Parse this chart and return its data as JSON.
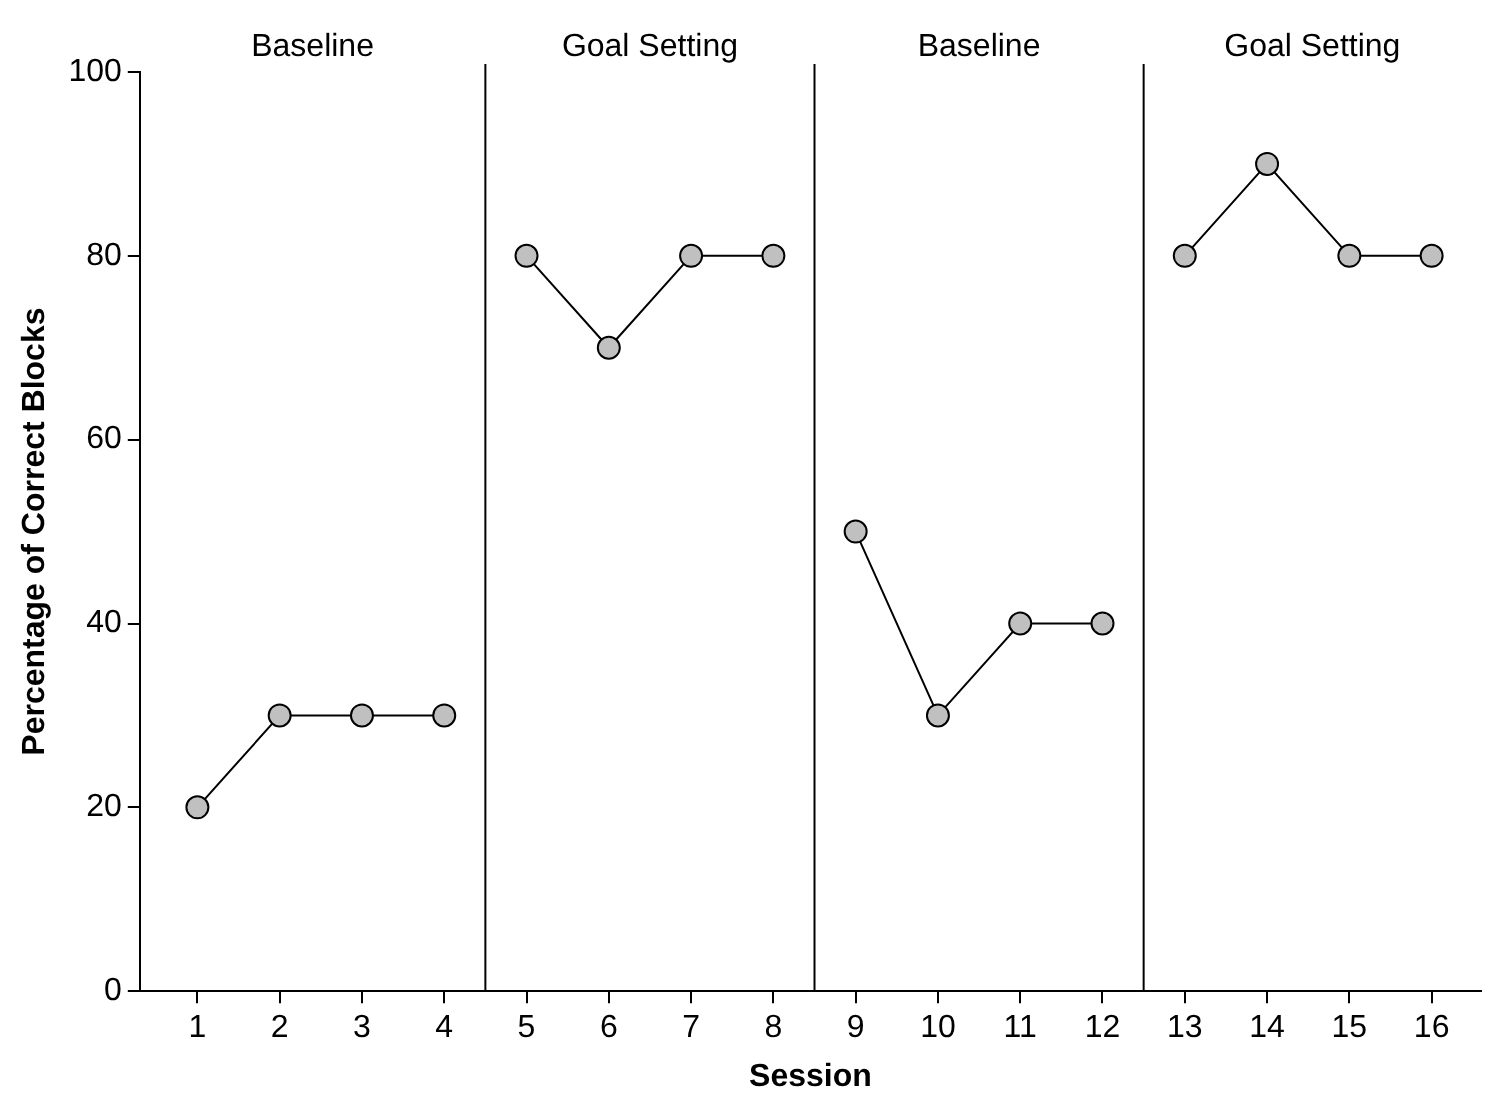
{
  "chart_data": {
    "type": "line",
    "xlabel": "Session",
    "ylabel": "Percentage of Correct Blocks",
    "xlim": [
      0.3,
      16.6
    ],
    "xticks": [
      1,
      2,
      3,
      4,
      5,
      6,
      7,
      8,
      9,
      10,
      11,
      12,
      13,
      14,
      15,
      16
    ],
    "ylim": [
      0,
      100
    ],
    "yticks": [
      0,
      20,
      40,
      60,
      80,
      100
    ],
    "grid": false,
    "legend": false,
    "marker": "circle",
    "line_style": "solid",
    "series": [
      {
        "color": "#c0c0c0",
        "x": [
          1,
          2,
          3,
          4
        ],
        "values": [
          20,
          30,
          30,
          30
        ]
      },
      {
        "color": "#c0c0c0",
        "x": [
          5,
          6,
          7,
          8
        ],
        "values": [
          80,
          70,
          80,
          80
        ]
      },
      {
        "color": "#c0c0c0",
        "x": [
          9,
          10,
          11,
          12
        ],
        "values": [
          50,
          30,
          40,
          40
        ]
      },
      {
        "color": "#c0c0c0",
        "x": [
          13,
          14,
          15,
          16
        ],
        "values": [
          80,
          90,
          80,
          80
        ]
      }
    ],
    "ref_lines": [
      {
        "axis": "x",
        "value": 4.5,
        "color": "#000000"
      },
      {
        "axis": "x",
        "value": 8.5,
        "color": "#000000"
      },
      {
        "axis": "x",
        "value": 12.5,
        "color": "#000000"
      }
    ],
    "annotations": [
      "Baseline",
      "Goal Setting",
      "Baseline",
      "Goal Setting"
    ]
  }
}
